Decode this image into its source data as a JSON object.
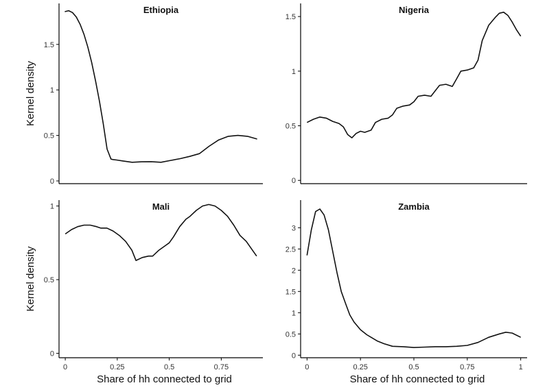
{
  "chart_data": [
    {
      "type": "line",
      "title": "Ethiopia",
      "xlabel": "",
      "ylabel": "Kernel density",
      "xlim": [
        -0.03,
        1.03
      ],
      "ylim": [
        -0.03,
        1.95
      ],
      "xticks": [],
      "yticks": [
        0,
        0.5,
        1,
        1.5
      ],
      "ytick_labels": [
        "0",
        "0.5",
        "1",
        "1.5"
      ],
      "x": [
        0,
        0.02,
        0.04,
        0.06,
        0.08,
        0.1,
        0.12,
        0.14,
        0.16,
        0.18,
        0.2,
        0.22,
        0.24,
        0.25,
        0.27,
        0.3,
        0.35,
        0.4,
        0.45,
        0.5,
        0.55,
        0.6,
        0.65,
        0.7,
        0.75,
        0.8,
        0.85,
        0.9,
        0.95,
        1.0
      ],
      "y": [
        1.86,
        1.87,
        1.85,
        1.8,
        1.72,
        1.61,
        1.47,
        1.3,
        1.1,
        0.88,
        0.63,
        0.35,
        0.24,
        0.235,
        0.23,
        0.22,
        0.205,
        0.21,
        0.212,
        0.205,
        0.225,
        0.245,
        0.27,
        0.3,
        0.38,
        0.45,
        0.49,
        0.5,
        0.49,
        0.46
      ]
    },
    {
      "type": "line",
      "title": "Nigeria",
      "xlabel": "",
      "ylabel": "",
      "xlim": [
        -0.03,
        1.03
      ],
      "ylim": [
        -0.03,
        1.62
      ],
      "xticks": [],
      "yticks": [
        0,
        0.5,
        1,
        1.5
      ],
      "ytick_labels": [
        "0",
        "0.5",
        "1",
        "1.5"
      ],
      "x": [
        0,
        0.03,
        0.06,
        0.09,
        0.12,
        0.15,
        0.17,
        0.19,
        0.21,
        0.23,
        0.25,
        0.27,
        0.3,
        0.32,
        0.35,
        0.38,
        0.4,
        0.42,
        0.45,
        0.48,
        0.5,
        0.52,
        0.55,
        0.58,
        0.6,
        0.62,
        0.65,
        0.68,
        0.7,
        0.72,
        0.75,
        0.78,
        0.8,
        0.82,
        0.85,
        0.88,
        0.9,
        0.92,
        0.94,
        0.96,
        0.98,
        1.0
      ],
      "y": [
        0.53,
        0.56,
        0.58,
        0.57,
        0.54,
        0.52,
        0.49,
        0.42,
        0.39,
        0.43,
        0.45,
        0.44,
        0.46,
        0.53,
        0.56,
        0.57,
        0.6,
        0.66,
        0.68,
        0.69,
        0.72,
        0.77,
        0.78,
        0.77,
        0.82,
        0.87,
        0.88,
        0.86,
        0.93,
        1.0,
        1.01,
        1.03,
        1.1,
        1.28,
        1.42,
        1.49,
        1.53,
        1.54,
        1.51,
        1.45,
        1.38,
        1.32
      ]
    },
    {
      "type": "line",
      "title": "Mali",
      "xlabel": "Share of hh connected to grid",
      "ylabel": "Kernel density",
      "xlim": [
        -0.03,
        0.95
      ],
      "ylim": [
        -0.03,
        1.04
      ],
      "xticks": [
        0,
        0.25,
        0.5,
        0.75
      ],
      "xtick_labels": [
        "0",
        "0.25",
        "0.5",
        "0.75"
      ],
      "yticks": [
        0,
        0.5,
        1
      ],
      "ytick_labels": [
        "0",
        "0.5",
        "1"
      ],
      "x": [
        0,
        0.03,
        0.06,
        0.09,
        0.12,
        0.15,
        0.17,
        0.2,
        0.23,
        0.26,
        0.29,
        0.32,
        0.34,
        0.37,
        0.4,
        0.42,
        0.45,
        0.48,
        0.5,
        0.52,
        0.55,
        0.58,
        0.6,
        0.63,
        0.66,
        0.69,
        0.72,
        0.75,
        0.78,
        0.81,
        0.84,
        0.87,
        0.9,
        0.92
      ],
      "y": [
        0.81,
        0.84,
        0.86,
        0.87,
        0.87,
        0.86,
        0.85,
        0.85,
        0.83,
        0.8,
        0.76,
        0.7,
        0.63,
        0.65,
        0.66,
        0.66,
        0.7,
        0.73,
        0.75,
        0.79,
        0.86,
        0.91,
        0.93,
        0.97,
        1.0,
        1.01,
        1.0,
        0.97,
        0.93,
        0.87,
        0.8,
        0.76,
        0.7,
        0.66
      ]
    },
    {
      "type": "line",
      "title": "Zambia",
      "xlabel": "Share of hh connected to grid",
      "ylabel": "",
      "xlim": [
        -0.03,
        1.03
      ],
      "ylim": [
        -0.06,
        3.65
      ],
      "xticks": [
        0,
        0.25,
        0.5,
        0.75,
        1
      ],
      "xtick_labels": [
        "0",
        "0.25",
        "0.5",
        "0.75",
        "1"
      ],
      "yticks": [
        0,
        0.5,
        1,
        1.5,
        2,
        2.5,
        3
      ],
      "ytick_labels": [
        "0",
        "0.5",
        "1",
        "1.5",
        "2",
        "2.5",
        "3"
      ],
      "x": [
        0,
        0.02,
        0.04,
        0.06,
        0.08,
        0.1,
        0.12,
        0.14,
        0.16,
        0.18,
        0.2,
        0.22,
        0.25,
        0.28,
        0.3,
        0.33,
        0.36,
        0.4,
        0.45,
        0.5,
        0.55,
        0.6,
        0.65,
        0.7,
        0.75,
        0.8,
        0.85,
        0.9,
        0.93,
        0.96,
        1.0
      ],
      "y": [
        2.35,
        2.95,
        3.38,
        3.44,
        3.3,
        2.95,
        2.45,
        1.95,
        1.5,
        1.22,
        0.95,
        0.78,
        0.6,
        0.48,
        0.42,
        0.33,
        0.27,
        0.21,
        0.2,
        0.18,
        0.19,
        0.2,
        0.2,
        0.21,
        0.23,
        0.3,
        0.42,
        0.5,
        0.54,
        0.52,
        0.42
      ]
    }
  ]
}
